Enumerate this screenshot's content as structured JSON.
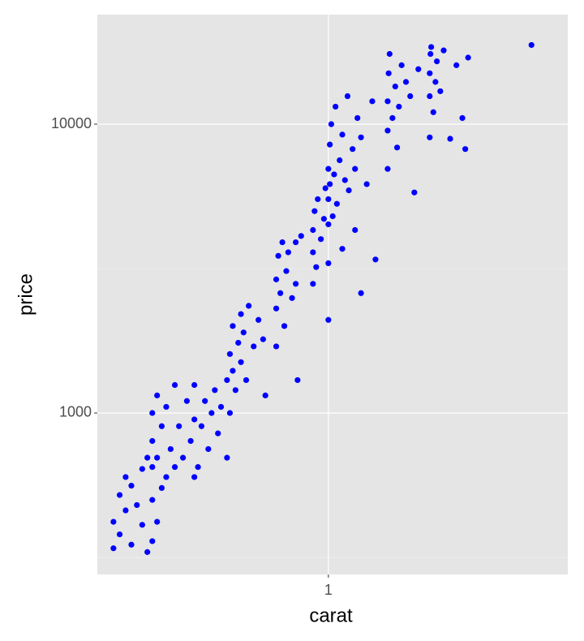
{
  "chart_data": {
    "type": "scatter",
    "x_label": "carat",
    "y_label": "price",
    "x_log": true,
    "y_log": true,
    "grid": true,
    "xlim": [
      0.206,
      5.14
    ],
    "ylim": [
      276,
      23950
    ],
    "xticks": [
      1
    ],
    "yticks": [
      1000,
      10000
    ],
    "yminor": [
      316,
      3162
    ],
    "series": [
      {
        "color": "#0000ff",
        "x": [
          0.23,
          0.23,
          0.24,
          0.24,
          0.25,
          0.25,
          0.26,
          0.26,
          0.27,
          0.28,
          0.28,
          0.29,
          0.29,
          0.3,
          0.3,
          0.3,
          0.3,
          0.3,
          0.31,
          0.31,
          0.31,
          0.32,
          0.32,
          0.33,
          0.33,
          0.34,
          0.35,
          0.35,
          0.36,
          0.37,
          0.38,
          0.39,
          0.4,
          0.4,
          0.4,
          0.41,
          0.42,
          0.43,
          0.44,
          0.45,
          0.46,
          0.47,
          0.48,
          0.5,
          0.5,
          0.51,
          0.51,
          0.52,
          0.52,
          0.53,
          0.54,
          0.55,
          0.55,
          0.56,
          0.57,
          0.58,
          0.6,
          0.62,
          0.64,
          0.65,
          0.7,
          0.7,
          0.7,
          0.71,
          0.72,
          0.73,
          0.74,
          0.75,
          0.76,
          0.78,
          0.8,
          0.8,
          0.81,
          0.83,
          0.9,
          0.9,
          0.9,
          0.91,
          0.92,
          0.93,
          0.95,
          0.97,
          0.98,
          1.0,
          1.0,
          1.0,
          1.0,
          1.0,
          1.01,
          1.01,
          1.02,
          1.03,
          1.04,
          1.05,
          1.06,
          1.08,
          1.1,
          1.1,
          1.12,
          1.14,
          1.15,
          1.18,
          1.2,
          1.2,
          1.22,
          1.25,
          1.25,
          1.3,
          1.35,
          1.38,
          1.5,
          1.5,
          1.5,
          1.51,
          1.52,
          1.55,
          1.58,
          1.6,
          1.62,
          1.65,
          1.7,
          1.75,
          1.8,
          1.85,
          2.0,
          2.0,
          2.0,
          2.01,
          2.02,
          2.05,
          2.08,
          2.1,
          2.15,
          2.2,
          2.3,
          2.4,
          2.5,
          2.55,
          2.6,
          4.01
        ],
        "y": [
          340,
          420,
          380,
          520,
          460,
          600,
          350,
          560,
          480,
          640,
          410,
          700,
          330,
          360,
          500,
          650,
          800,
          1000,
          420,
          700,
          1150,
          550,
          900,
          600,
          1050,
          750,
          650,
          1250,
          900,
          700,
          1100,
          800,
          950,
          1250,
          600,
          650,
          900,
          1100,
          750,
          1000,
          1200,
          850,
          1050,
          700,
          1300,
          1000,
          1600,
          1400,
          2000,
          1200,
          1750,
          2200,
          1500,
          1900,
          1300,
          2350,
          1700,
          2100,
          1800,
          1150,
          1700,
          2300,
          2900,
          3500,
          2600,
          3900,
          2000,
          3100,
          3600,
          2500,
          2800,
          3900,
          1300,
          4100,
          2800,
          3600,
          4300,
          5000,
          3200,
          5500,
          4000,
          4700,
          6000,
          2100,
          3300,
          4500,
          5500,
          7000,
          6200,
          8500,
          10000,
          4800,
          6700,
          11500,
          5300,
          7500,
          9200,
          3700,
          6400,
          12500,
          5900,
          8200,
          7000,
          4300,
          10500,
          2600,
          9000,
          6200,
          12000,
          3400,
          7000,
          9500,
          12000,
          15000,
          17500,
          10500,
          13500,
          8300,
          11500,
          16000,
          14000,
          12500,
          5800,
          15500,
          9000,
          12500,
          15000,
          17500,
          18500,
          11000,
          14000,
          16500,
          13000,
          18000,
          8900,
          16000,
          10500,
          8200,
          17000,
          18800
        ]
      }
    ]
  }
}
